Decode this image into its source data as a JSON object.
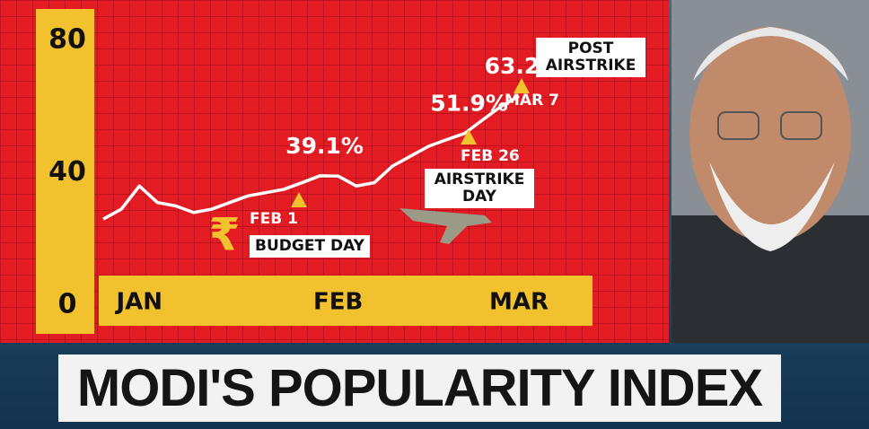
{
  "chart_data": {
    "type": "line",
    "title": "MODI'S POPULARITY INDEX",
    "categories": [
      null,
      null,
      "JAN",
      null,
      null,
      null,
      null,
      null,
      null,
      null,
      null,
      null,
      null,
      "FEB",
      null,
      null,
      null,
      null,
      null,
      null,
      null,
      null,
      null,
      "MAR"
    ],
    "values": [
      26,
      29,
      36,
      31,
      30,
      28,
      29,
      31,
      33,
      34,
      35,
      37,
      39.1,
      39,
      36,
      37,
      42,
      45,
      48,
      50,
      51.9,
      56,
      60,
      63.2
    ],
    "value_labels": [
      null,
      null,
      null,
      null,
      null,
      null,
      null,
      null,
      null,
      null,
      null,
      null,
      "39.1%",
      null,
      null,
      null,
      null,
      null,
      null,
      null,
      "51.9%",
      null,
      null,
      "63.2%"
    ],
    "color": "#ffffff",
    "ylim": [
      0,
      80
    ],
    "yticks": [
      0,
      40,
      80
    ],
    "budget_symbol": "₹",
    "events": [
      {
        "date": "FEB 1",
        "label": "BUDGET DAY"
      },
      {
        "date": "FEB 26",
        "label": "AIRSTRIKE DAY"
      },
      {
        "date": "MAR 7",
        "label": "POST AIRSTRIKE"
      }
    ]
  }
}
